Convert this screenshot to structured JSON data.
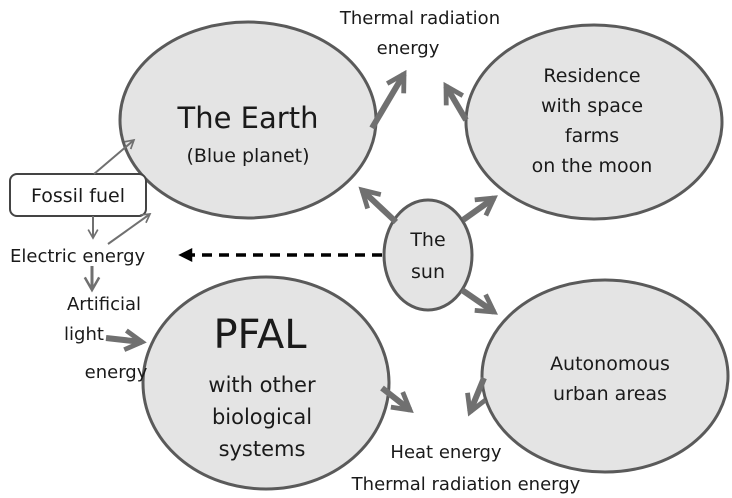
{
  "colors": {
    "fill": "#e4e4e4",
    "stroke": "#5a5a5a",
    "arrow": "#707070",
    "text": "#1a1a1a",
    "dash": "#000000"
  },
  "nodes": {
    "earth": {
      "title": "The Earth",
      "subtitle": "(Blue planet)"
    },
    "residence": {
      "line1": "Residence",
      "line2": "with space",
      "line3": "farms",
      "line4": "on the moon"
    },
    "sun": {
      "line1": "The",
      "line2": "sun"
    },
    "pfal": {
      "title": "PFAL",
      "line1": "with other",
      "line2": "biological",
      "line3": "systems"
    },
    "urban": {
      "line1": "Autonomous",
      "line2": "urban areas"
    },
    "fossil_fuel": {
      "label": "Fossil fuel"
    }
  },
  "labels": {
    "thermal_top_1": "Thermal radiation",
    "thermal_top_2": "energy",
    "electric_energy": "Electric energy",
    "artificial_1": "Artificial",
    "artificial_2": "light",
    "artificial_3": "energy",
    "heat_energy": "Heat energy",
    "thermal_bottom": "Thermal radiation energy"
  }
}
